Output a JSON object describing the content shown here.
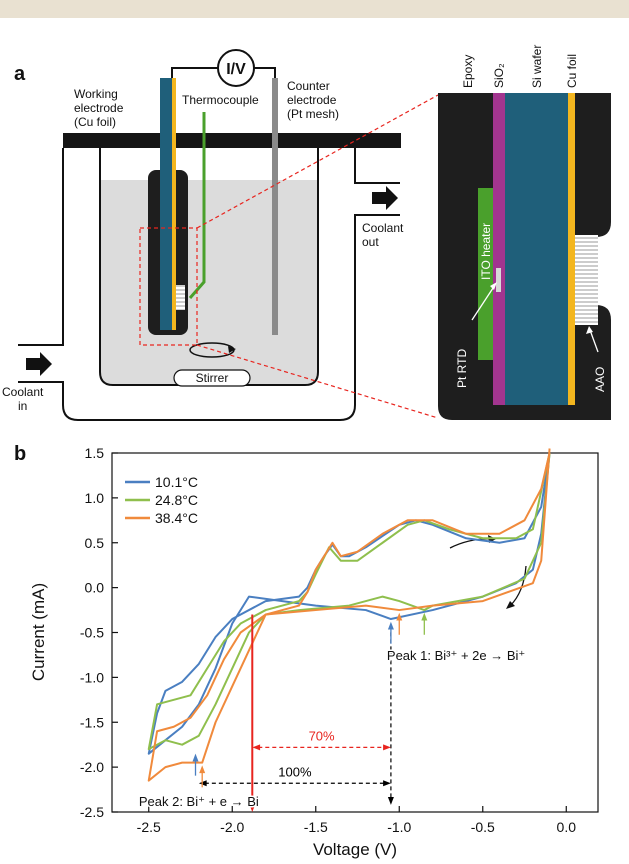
{
  "panel_a": {
    "label": "a",
    "meter": "I/V",
    "working_electrode": [
      "Working",
      "electrode",
      "(Cu foil)"
    ],
    "thermocouple": "Thermocouple",
    "counter_electrode": [
      "Counter",
      "electrode",
      "(Pt mesh)"
    ],
    "coolant_out": [
      "Coolant",
      "out"
    ],
    "coolant_in": [
      "Coolant",
      "in"
    ],
    "stirrer": "Stirrer",
    "inset": {
      "layers": [
        "Epoxy",
        "SiO₂",
        "Si wafer",
        "Cu foil"
      ],
      "heater": "ITO heater",
      "sensor": "Pt RTD",
      "membrane": "AAO"
    }
  },
  "chart_data": {
    "type": "line",
    "panel_label": "b",
    "x_label": "Voltage (V)",
    "y_label": "Current (mA)",
    "xlim": [
      -2.72,
      0.19
    ],
    "ylim": [
      -2.5,
      1.5
    ],
    "xticks": [
      -2.5,
      {
        "value": -2.0,
        "label": "-2.0"
      },
      -1.5,
      {
        "value": -1.0,
        "label": "-1.0"
      },
      -0.5,
      {
        "value": 0.0,
        "label": "0.0"
      }
    ],
    "yticks": [
      -2.5,
      {
        "value": -2.0,
        "label": "-2.0"
      },
      -1.5,
      {
        "value": -1.0,
        "label": "-1.0"
      },
      -0.5,
      {
        "value": 0.0,
        "label": "0.0"
      },
      0.5,
      {
        "value": 1.0,
        "label": "1.0"
      },
      1.5
    ],
    "grid": false,
    "legend": "upper left",
    "series": [
      {
        "name": "10.1°C",
        "color": "#4a7fc1",
        "x": [
          -0.1,
          -0.15,
          -0.2,
          -0.3,
          -0.5,
          -0.8,
          -1.05,
          -1.2,
          -1.5,
          -1.7,
          -1.9,
          -2.0,
          -2.1,
          -2.2,
          -2.3,
          -2.4,
          -2.5,
          -2.45,
          -2.4,
          -2.3,
          -2.2,
          -2.1,
          -2.0,
          -1.8,
          -1.6,
          -1.55,
          -1.5,
          -1.45,
          -1.4,
          -1.35,
          -1.3,
          -1.2,
          -1.0,
          -0.9,
          -0.8,
          -0.6,
          -0.4,
          -0.25,
          -0.15,
          -0.1
        ],
        "values": [
          1.5,
          0.6,
          0.2,
          0.05,
          -0.1,
          -0.25,
          -0.35,
          -0.25,
          -0.2,
          -0.15,
          -0.1,
          -0.4,
          -0.9,
          -1.3,
          -1.55,
          -1.7,
          -1.85,
          -1.4,
          -1.15,
          -1.05,
          -0.85,
          -0.55,
          -0.35,
          -0.15,
          -0.1,
          0.0,
          0.2,
          0.35,
          0.48,
          0.35,
          0.35,
          0.45,
          0.7,
          0.75,
          0.7,
          0.55,
          0.5,
          0.55,
          0.9,
          1.5
        ]
      },
      {
        "name": "24.8°C",
        "color": "#8fbf4d",
        "x": [
          -0.1,
          -0.15,
          -0.25,
          -0.5,
          -0.8,
          -0.85,
          -1.0,
          -1.1,
          -1.3,
          -1.6,
          -1.8,
          -1.9,
          -2.0,
          -2.1,
          -2.2,
          -2.3,
          -2.4,
          -2.5,
          -2.45,
          -2.35,
          -2.25,
          -2.15,
          -2.05,
          -1.95,
          -1.8,
          -1.6,
          -1.55,
          -1.5,
          -1.42,
          -1.35,
          -1.25,
          -1.1,
          -0.95,
          -0.85,
          -0.7,
          -0.5,
          -0.3,
          -0.2,
          -0.1
        ],
        "values": [
          1.5,
          0.5,
          0.1,
          -0.1,
          -0.2,
          -0.25,
          -0.15,
          -0.1,
          -0.2,
          -0.25,
          -0.3,
          -0.5,
          -0.9,
          -1.3,
          -1.65,
          -1.75,
          -1.7,
          -1.8,
          -1.3,
          -1.25,
          -1.2,
          -0.9,
          -0.6,
          -0.4,
          -0.25,
          -0.15,
          -0.05,
          0.15,
          0.45,
          0.3,
          0.3,
          0.5,
          0.7,
          0.75,
          0.65,
          0.55,
          0.55,
          0.65,
          1.5
        ]
      },
      {
        "name": "38.4°C",
        "color": "#f08a3c",
        "x": [
          -0.1,
          -0.15,
          -0.2,
          -0.5,
          -0.8,
          -1.0,
          -1.2,
          -1.5,
          -1.8,
          -1.9,
          -2.0,
          -2.1,
          -2.18,
          -2.3,
          -2.4,
          -2.5,
          -2.45,
          -2.35,
          -2.25,
          -2.15,
          -2.05,
          -1.95,
          -1.8,
          -1.6,
          -1.55,
          -1.5,
          -1.4,
          -1.35,
          -1.25,
          -1.1,
          -0.95,
          -0.8,
          -0.6,
          -0.4,
          -0.25,
          -0.15,
          -0.1
        ],
        "values": [
          1.55,
          0.3,
          0.05,
          -0.15,
          -0.2,
          -0.25,
          -0.2,
          -0.25,
          -0.3,
          -0.7,
          -1.1,
          -1.5,
          -1.95,
          -1.95,
          -2.0,
          -2.15,
          -1.6,
          -1.55,
          -1.45,
          -1.2,
          -0.8,
          -0.5,
          -0.3,
          -0.2,
          -0.05,
          0.2,
          0.5,
          0.35,
          0.4,
          0.6,
          0.75,
          0.75,
          0.6,
          0.6,
          0.75,
          1.1,
          1.5
        ]
      }
    ],
    "peak_markers": [
      {
        "x": -1.05,
        "y": -0.38,
        "color": "#4a7fc1"
      },
      {
        "x": -1.0,
        "y": -0.28,
        "color": "#f08a3c"
      },
      {
        "x": -0.85,
        "y": -0.28,
        "color": "#8fbf4d"
      },
      {
        "x": -2.22,
        "y": -1.85,
        "color": "#4a7fc1"
      },
      {
        "x": -2.18,
        "y": -1.98,
        "color": "#f08a3c"
      }
    ],
    "drop_lines": [
      {
        "x": -1.88,
        "y": [
          -0.3,
          -2.5
        ],
        "color": "#e8251f",
        "dashed": false
      },
      {
        "x": -1.05,
        "y": [
          -0.42,
          -2.42
        ],
        "color": "#000000",
        "dashed": true
      }
    ],
    "arrows": [
      {
        "label": "70%",
        "color": "#e8251f",
        "x": [
          -1.88,
          -1.05
        ],
        "y": -1.78
      },
      {
        "label": "100%",
        "color": "#000000",
        "x": [
          -2.2,
          -1.05
        ],
        "y": -2.18
      }
    ],
    "annotations": [
      {
        "text": "Peak 1: Bi³⁺ + 2e → Bi⁺",
        "x": -1.05,
        "y": -0.75
      },
      {
        "text": "Peak 2: Bi⁺ + e → Bi",
        "x": -2.2,
        "y": -2.38
      }
    ]
  }
}
